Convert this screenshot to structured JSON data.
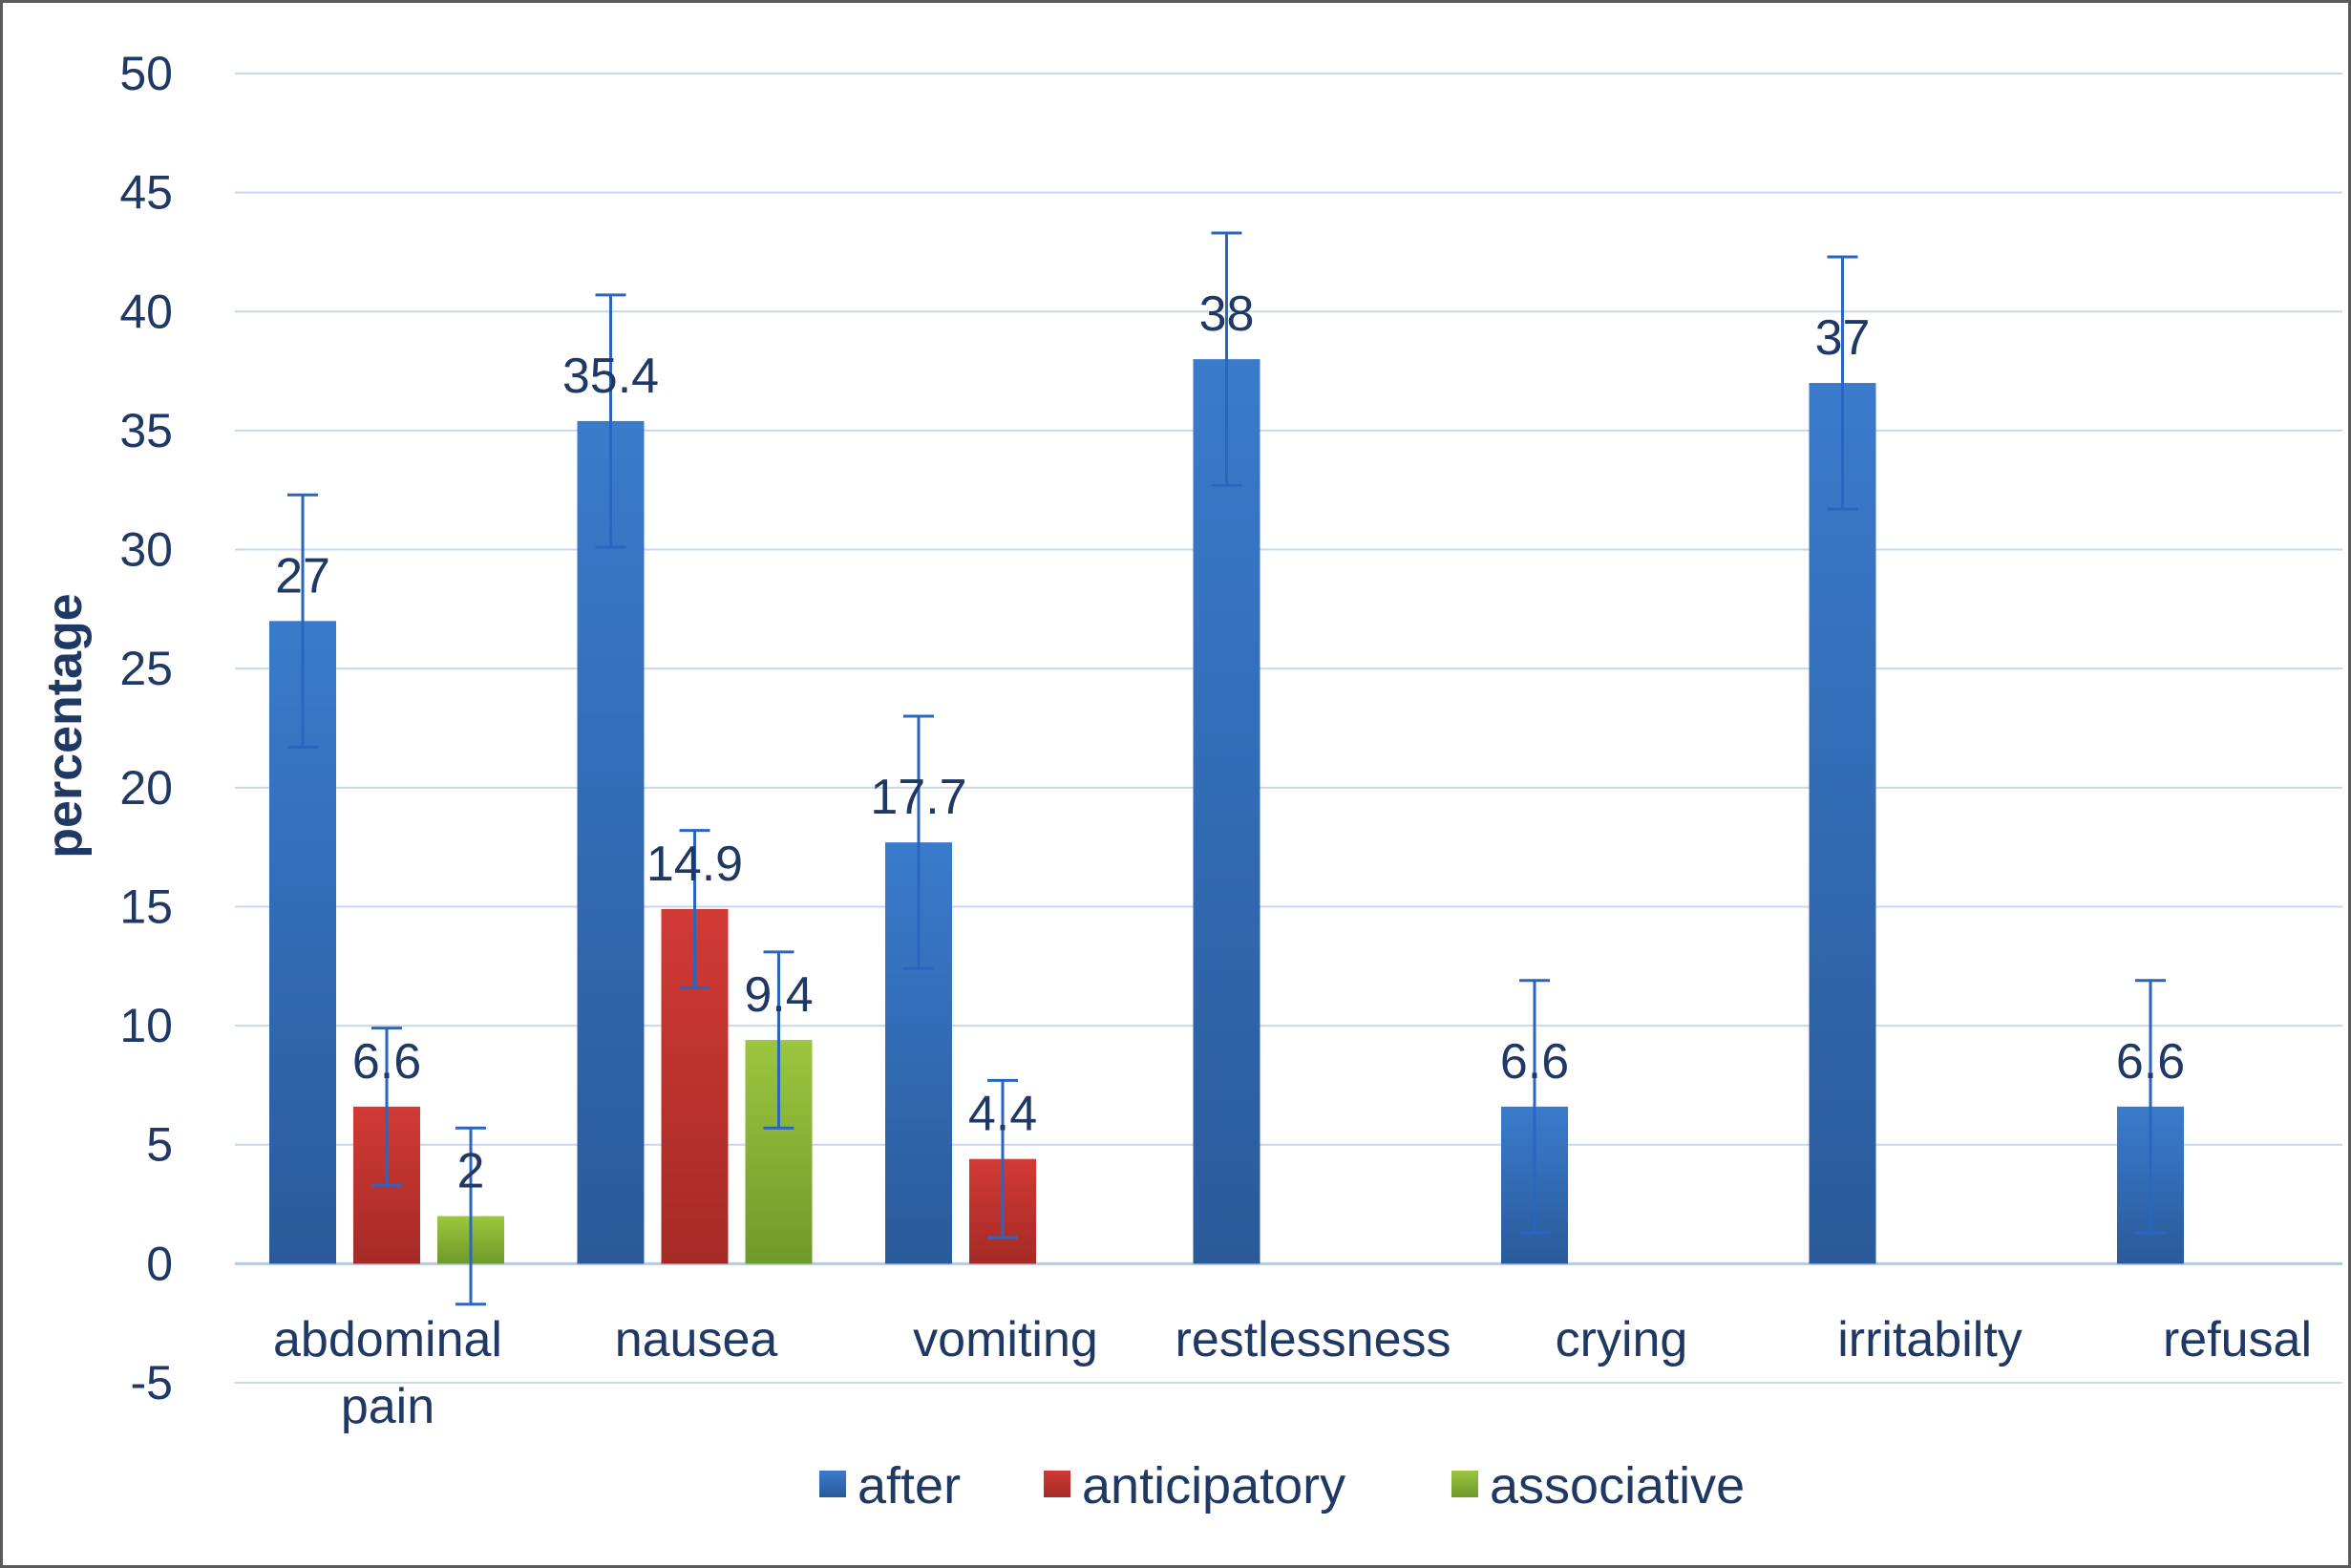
{
  "chart_data": {
    "type": "bar",
    "title": "",
    "xlabel": "",
    "ylabel": "percentage",
    "ylim": [
      -5,
      50
    ],
    "yticks": [
      50,
      45,
      40,
      35,
      30,
      25,
      20,
      15,
      10,
      5,
      0,
      -5
    ],
    "grid": true,
    "legend_position": "bottom",
    "categories": [
      [
        "abdominal",
        "pain"
      ],
      [
        "nausea"
      ],
      [
        "vomiting"
      ],
      [
        "restlessness"
      ],
      [
        "crying"
      ],
      [
        "irritabilty"
      ],
      [
        "refusal"
      ]
    ],
    "series": [
      {
        "name": "after",
        "color": "#2e6bb8",
        "values": [
          27,
          35.4,
          17.7,
          38,
          6.6,
          37,
          6.6
        ],
        "labels": [
          "27",
          "35.4",
          "17.7",
          "38",
          "6.6",
          "37",
          "6.6"
        ],
        "error": [
          5.3,
          5.3,
          5.3,
          5.3,
          5.3,
          5.3,
          5.3
        ]
      },
      {
        "name": "anticipatory",
        "color": "#c0302c",
        "values": [
          6.6,
          14.9,
          4.4,
          null,
          null,
          null,
          null
        ],
        "labels": [
          "6.6",
          "14.9",
          "4.4",
          null,
          null,
          null,
          null
        ],
        "error": [
          3.3,
          3.3,
          3.3,
          null,
          null,
          null,
          null
        ]
      },
      {
        "name": "associative",
        "color": "#8db53a",
        "values": [
          2,
          9.4,
          null,
          null,
          null,
          null,
          null
        ],
        "labels": [
          "2",
          "9.4",
          null,
          null,
          null,
          null,
          null
        ],
        "error": [
          3.7,
          3.7,
          null,
          null,
          null,
          null,
          null
        ]
      }
    ]
  }
}
